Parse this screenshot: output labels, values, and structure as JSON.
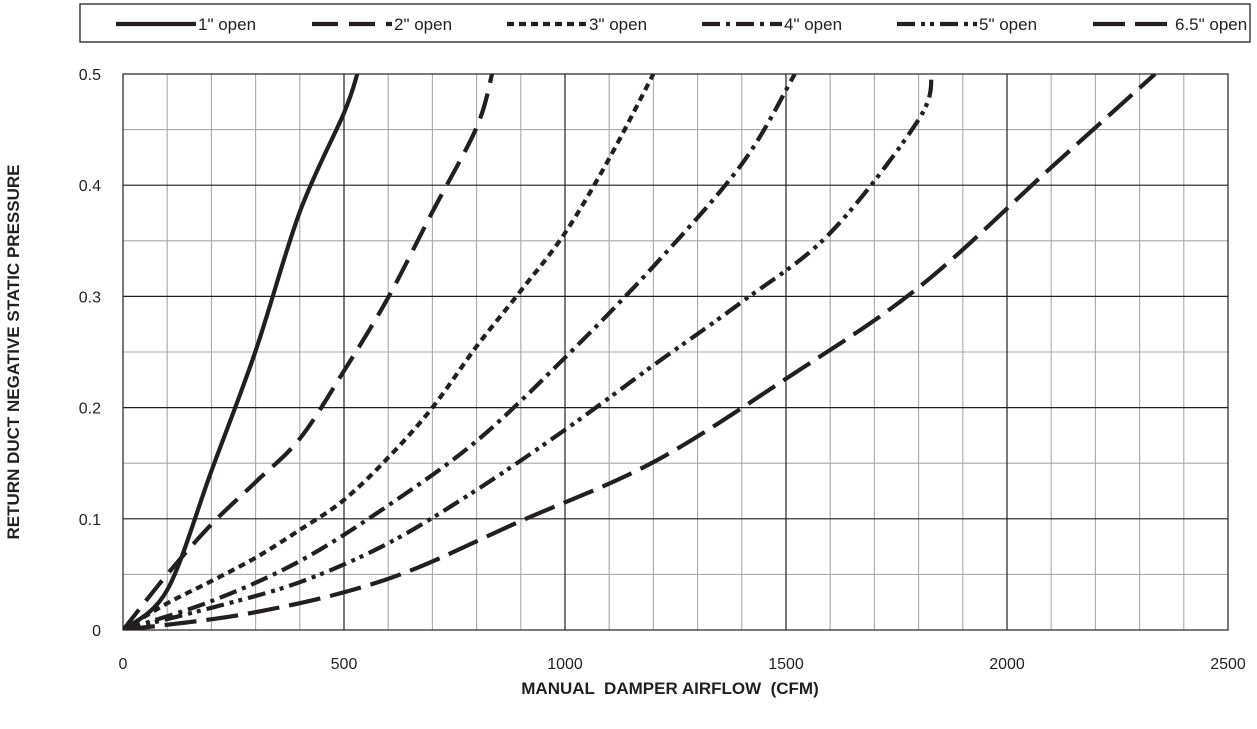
{
  "chart_data": {
    "type": "line",
    "title": "",
    "xlabel": "MANUAL  DAMPER AIRFLOW  (CFM)",
    "ylabel": "RETURN DUCT NEGATIVE STATIC PRESSURE",
    "xlim": [
      0,
      2500
    ],
    "ylim": [
      0,
      0.5
    ],
    "x_ticks": [
      0,
      500,
      1000,
      1500,
      2000,
      2500
    ],
    "y_ticks": [
      0,
      0.1,
      0.2,
      0.3,
      0.4,
      0.5
    ],
    "x_tick_labels": [
      "0",
      "500",
      "1000",
      "1500",
      "2000",
      "2500"
    ],
    "y_tick_labels": [
      "0",
      "0.1",
      "0.2",
      "0.3",
      "0.4",
      "0.5"
    ],
    "grid": true,
    "legend_position": "top",
    "series": [
      {
        "name": "1\" open",
        "line_style": "solid",
        "points": [
          [
            0,
            0
          ],
          [
            100,
            0.036
          ],
          [
            200,
            0.143
          ],
          [
            300,
            0.251
          ],
          [
            400,
            0.376
          ],
          [
            500,
            0.465
          ],
          [
            530,
            0.5
          ]
        ]
      },
      {
        "name": "2\" open",
        "line_style": "dashed",
        "points": [
          [
            0,
            0
          ],
          [
            100,
            0.05
          ],
          [
            200,
            0.095
          ],
          [
            300,
            0.133
          ],
          [
            400,
            0.172
          ],
          [
            500,
            0.233
          ],
          [
            600,
            0.299
          ],
          [
            700,
            0.376
          ],
          [
            800,
            0.452
          ],
          [
            835,
            0.5
          ]
        ]
      },
      {
        "name": "3\" open",
        "line_style": "dotted",
        "points": [
          [
            0,
            0
          ],
          [
            100,
            0.024
          ],
          [
            200,
            0.044
          ],
          [
            300,
            0.065
          ],
          [
            400,
            0.09
          ],
          [
            500,
            0.117
          ],
          [
            600,
            0.155
          ],
          [
            700,
            0.2
          ],
          [
            800,
            0.255
          ],
          [
            900,
            0.305
          ],
          [
            1000,
            0.357
          ],
          [
            1100,
            0.424
          ],
          [
            1200,
            0.5
          ]
        ]
      },
      {
        "name": "4\" open",
        "line_style": "dash-dot",
        "points": [
          [
            0,
            0
          ],
          [
            200,
            0.026
          ],
          [
            400,
            0.062
          ],
          [
            600,
            0.112
          ],
          [
            800,
            0.17
          ],
          [
            1000,
            0.245
          ],
          [
            1200,
            0.327
          ],
          [
            1400,
            0.419
          ],
          [
            1520,
            0.5
          ]
        ]
      },
      {
        "name": "5\" open",
        "line_style": "dash-dot-dot",
        "points": [
          [
            0,
            0
          ],
          [
            200,
            0.02
          ],
          [
            400,
            0.043
          ],
          [
            600,
            0.078
          ],
          [
            800,
            0.126
          ],
          [
            1000,
            0.18
          ],
          [
            1200,
            0.238
          ],
          [
            1400,
            0.295
          ],
          [
            1600,
            0.357
          ],
          [
            1800,
            0.459
          ],
          [
            1830,
            0.5
          ]
        ]
      },
      {
        "name": "6.5\" open",
        "line_style": "long-dash",
        "points": [
          [
            0,
            0
          ],
          [
            300,
            0.016
          ],
          [
            600,
            0.046
          ],
          [
            900,
            0.098
          ],
          [
            1200,
            0.151
          ],
          [
            1500,
            0.226
          ],
          [
            1800,
            0.308
          ],
          [
            2100,
            0.416
          ],
          [
            2335,
            0.5
          ]
        ]
      }
    ]
  }
}
